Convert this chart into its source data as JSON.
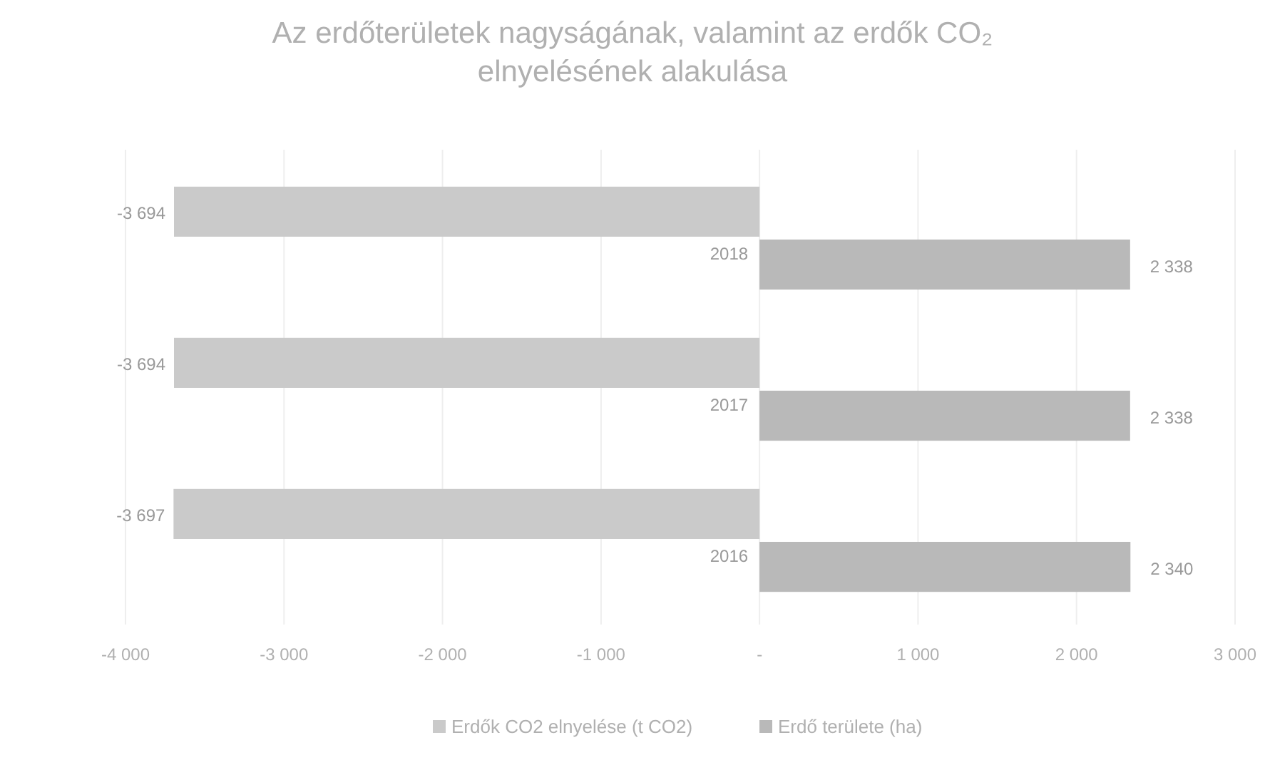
{
  "chart_data": {
    "type": "bar",
    "orientation": "horizontal",
    "title": "Az erdőterületek nagyságának, valamint az erdők CO₂ elnyelésének alakulása",
    "categories": [
      "2018",
      "2017",
      "2016"
    ],
    "series": [
      {
        "name": "Erdők CO2 elnyelése (t CO2)",
        "color": "#cacaca",
        "values": [
          -3694,
          -3694,
          -3697
        ],
        "value_labels": [
          "-3 694",
          "-3 694",
          "-3 697"
        ]
      },
      {
        "name": "Erdő területe (ha)",
        "color": "#b9b9b9",
        "values": [
          2338,
          2338,
          2340
        ],
        "value_labels": [
          "2 338",
          "2 338",
          "2 340"
        ]
      }
    ],
    "xlim": [
      -4000,
      3000
    ],
    "xticks": [
      {
        "value": -4000,
        "label": "-4 000"
      },
      {
        "value": -3000,
        "label": "-3 000"
      },
      {
        "value": -2000,
        "label": "-2 000"
      },
      {
        "value": -1000,
        "label": "-1 000"
      },
      {
        "value": 0,
        "label": "-"
      },
      {
        "value": 1000,
        "label": "1 000"
      },
      {
        "value": 2000,
        "label": "2 000"
      },
      {
        "value": 3000,
        "label": "3 000"
      }
    ],
    "grid": "x",
    "legend": "bottom"
  }
}
